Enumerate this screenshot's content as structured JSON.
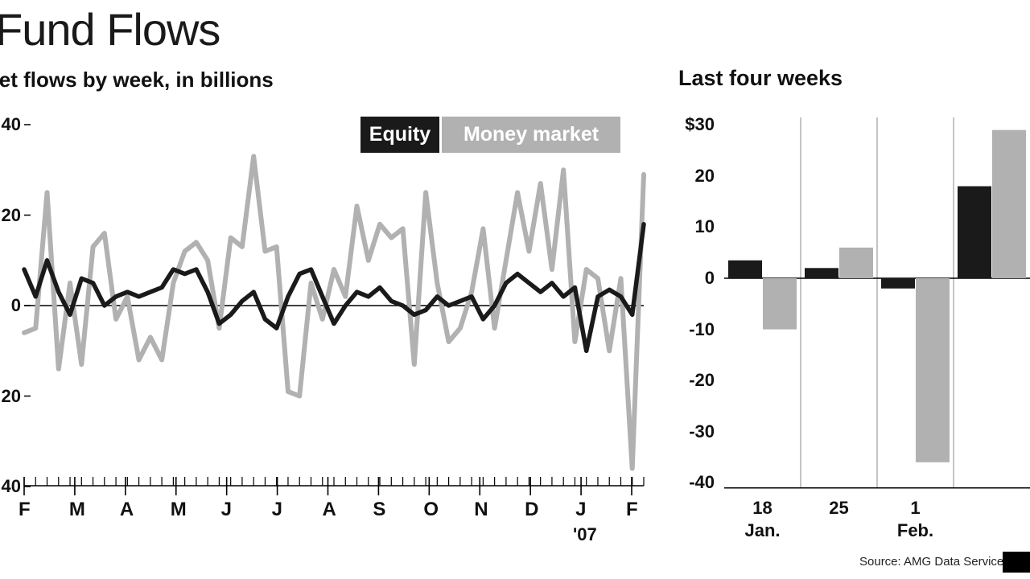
{
  "chart_data": [
    {
      "type": "line",
      "title": "Fund Flows",
      "subtitle": "Net flows by week, in billions",
      "year_label": "'07",
      "ylim": [
        -40,
        40
      ],
      "ytick_values": [
        40,
        20,
        0,
        -20,
        -40
      ],
      "ytick_labels": [
        "40",
        "20",
        "0",
        "20",
        "40"
      ],
      "x_month_labels": [
        "F",
        "M",
        "A",
        "M",
        "J",
        "J",
        "A",
        "S",
        "O",
        "N",
        "D",
        "J",
        "F"
      ],
      "legend_position": "top-right",
      "grid": "zero-line-only",
      "series": [
        {
          "name": "Equity",
          "color": "#1a1a1a",
          "values": [
            8,
            2,
            10,
            3,
            -2,
            6,
            5,
            0,
            2,
            3,
            2,
            3,
            4,
            8,
            7,
            8,
            3,
            -4,
            -2,
            1,
            3,
            -3,
            -5,
            2,
            7,
            8,
            2,
            -4,
            0,
            3,
            2,
            4,
            1,
            0,
            -2,
            -1,
            2,
            0,
            1,
            2,
            -3,
            0,
            5,
            7,
            5,
            3,
            5,
            2,
            4,
            -10,
            2,
            3.5,
            2,
            -2,
            18
          ]
        },
        {
          "name": "Money market",
          "color": "#b1b1b1",
          "values": [
            -6,
            -5,
            25,
            -14,
            5,
            -13,
            13,
            16,
            -3,
            2,
            -12,
            -7,
            -12,
            5,
            12,
            14,
            10,
            -5,
            15,
            13,
            33,
            12,
            13,
            -19,
            -20,
            5,
            -3,
            8,
            2,
            22,
            10,
            18,
            15,
            17,
            -13,
            25,
            5,
            -8,
            -5,
            3,
            17,
            -5,
            10,
            25,
            12,
            27,
            8,
            30,
            -8,
            8,
            6,
            -10,
            6,
            -36,
            29
          ]
        }
      ]
    },
    {
      "type": "bar",
      "title": "Last four weeks",
      "ylim": [
        -40,
        30
      ],
      "ytick_values": [
        30,
        20,
        10,
        0,
        -10,
        -20,
        -30,
        -40
      ],
      "ytick_labels": [
        "$30",
        "20",
        "10",
        "0",
        "-10",
        "-20",
        "-30",
        "-40"
      ],
      "categories": [
        {
          "label": "18",
          "sublabel": "Jan."
        },
        {
          "label": "25",
          "sublabel": ""
        },
        {
          "label": "1",
          "sublabel": "Feb."
        },
        {
          "label": "",
          "sublabel": ""
        }
      ],
      "grid": "vertical-group-separators",
      "series": [
        {
          "name": "Equity",
          "color": "#1a1a1a",
          "values": [
            3.5,
            2,
            -2,
            18
          ]
        },
        {
          "name": "Money market",
          "color": "#b1b1b1",
          "values": [
            -10,
            6,
            -36,
            29
          ]
        }
      ],
      "source": "Source: AMG Data Service"
    }
  ],
  "colors": {
    "equity": "#1a1a1a",
    "money_market": "#b1b1b1",
    "grid_line": "#8a8a8a",
    "axis": "#000000",
    "background": "#ffffff"
  }
}
